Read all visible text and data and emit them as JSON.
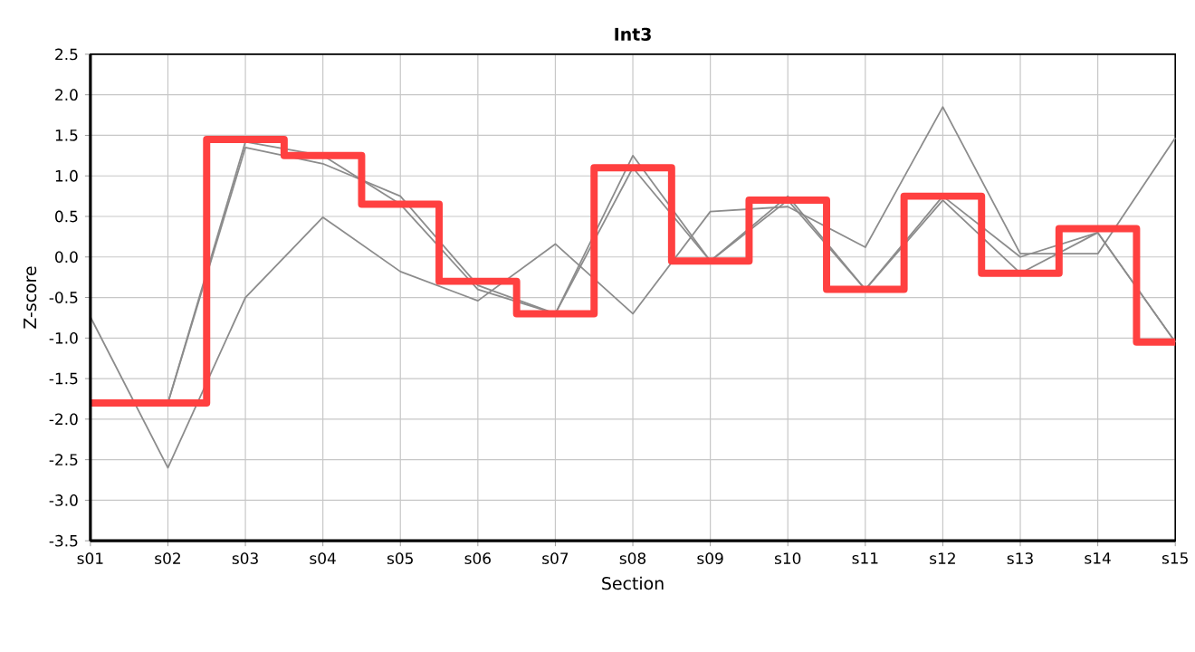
{
  "chart_data": {
    "type": "line",
    "title": "Int3",
    "xlabel": "Section",
    "ylabel": "Z-score",
    "categories": [
      "s01",
      "s02",
      "s03",
      "s04",
      "s05",
      "s06",
      "s07",
      "s08",
      "s09",
      "s10",
      "s11",
      "s12",
      "s13",
      "s14",
      "s15"
    ],
    "ylim": [
      -3.5,
      2.5
    ],
    "yticks": [
      {
        "value": -3.5,
        "label": "-3.5"
      },
      {
        "value": -3,
        "label": "-3.0"
      },
      {
        "value": -2.5,
        "label": "-2.5"
      },
      {
        "value": -2,
        "label": "-2.0"
      },
      {
        "value": -1.5,
        "label": "-1.5"
      },
      {
        "value": -1,
        "label": "-1.0"
      },
      {
        "value": -0.5,
        "label": "-0.5"
      },
      {
        "value": 0,
        "label": "0.0"
      },
      {
        "value": 0.5,
        "label": "0.5"
      },
      {
        "value": 1,
        "label": "1.0"
      },
      {
        "value": 1.5,
        "label": "1.5"
      },
      {
        "value": 2,
        "label": "2.0"
      },
      {
        "value": 2.5,
        "label": "2.5"
      }
    ],
    "grid": true,
    "marker": "none",
    "line_style": "solid",
    "series": [
      {
        "color": "#8c8c8c",
        "values": [
          -0.74,
          -2.6,
          -0.5,
          0.49,
          -0.18,
          -0.54,
          0.16,
          -0.7,
          0.56,
          0.62,
          0.12,
          1.85,
          0.04,
          0.04,
          1.47
        ]
      },
      {
        "color": "#8c8c8c",
        "values": [
          -1.8,
          -1.8,
          1.35,
          1.15,
          0.75,
          -0.35,
          -0.7,
          1.25,
          -0.05,
          0.75,
          -0.4,
          0.7,
          -0.2,
          0.3,
          -1.05
        ]
      },
      {
        "color": "#8c8c8c",
        "values": [
          -1.8,
          -1.8,
          1.42,
          1.25,
          0.65,
          -0.4,
          -0.7,
          1.1,
          -0.05,
          0.7,
          -0.4,
          0.75,
          0.0,
          0.3,
          -1.05
        ]
      },
      {
        "type": "step",
        "color": "#ff4040",
        "values": [
          -1.8,
          -1.8,
          1.45,
          1.25,
          0.65,
          -0.3,
          -0.7,
          1.1,
          -0.05,
          0.7,
          -0.4,
          0.75,
          -0.2,
          0.35,
          -1.05
        ]
      }
    ]
  }
}
